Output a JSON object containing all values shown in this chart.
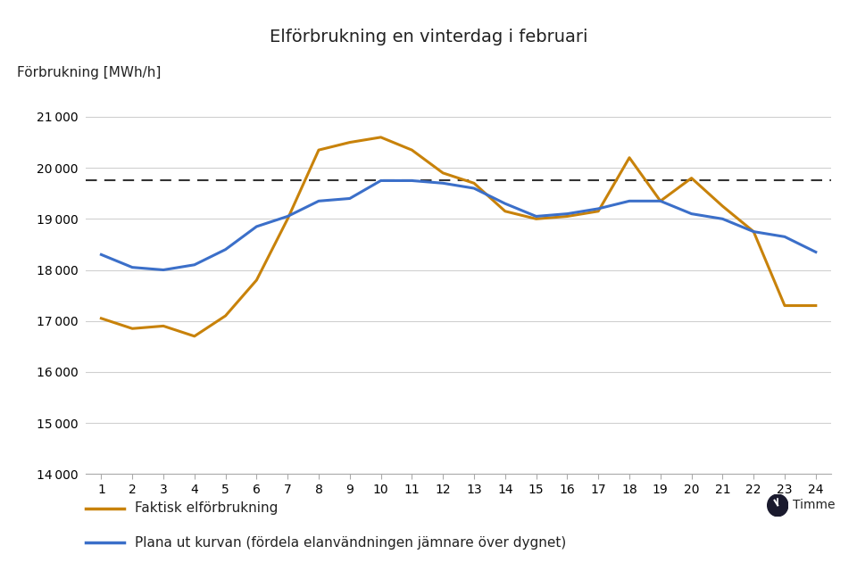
{
  "title": "Elförbrukning en vinterdag i februari",
  "ylabel": "Förbrukning [MWh/h]",
  "xlabel_icon_label": "Timme",
  "hours": [
    1,
    2,
    3,
    4,
    5,
    6,
    7,
    8,
    9,
    10,
    11,
    12,
    13,
    14,
    15,
    16,
    17,
    18,
    19,
    20,
    21,
    22,
    23,
    24
  ],
  "faktisk": [
    17050,
    16850,
    16900,
    16700,
    17100,
    17800,
    19000,
    20350,
    20500,
    20600,
    20350,
    19900,
    19700,
    19150,
    19000,
    19050,
    19150,
    20200,
    19350,
    19800,
    19250,
    18750,
    17300,
    17300
  ],
  "plana": [
    18300,
    18050,
    18000,
    18100,
    18400,
    18850,
    19050,
    19350,
    19400,
    19750,
    19750,
    19700,
    19600,
    19300,
    19050,
    19100,
    19200,
    19350,
    19350,
    19100,
    19000,
    18750,
    18650,
    18350
  ],
  "dashed_line_y": 19750,
  "ylim": [
    14000,
    21500
  ],
  "yticks": [
    14000,
    15000,
    16000,
    17000,
    18000,
    19000,
    20000,
    21000
  ],
  "ytick_labels": [
    "14 000",
    "15 000",
    "16 000",
    "17 000",
    "18 000",
    "19 000",
    "20 000",
    "21 000"
  ],
  "color_faktisk": "#C8820A",
  "color_plana": "#3B6FC9",
  "color_dashed": "#333333",
  "legend_faktisk": "Faktisk elförbrukning",
  "legend_plana": "Plana ut kurvan (fördela elanvändningen jämnare över dygnet)",
  "bg_color": "#FFFFFF",
  "grid_color": "#D0D0D0",
  "title_fontsize": 14,
  "axis_label_fontsize": 11,
  "tick_fontsize": 10,
  "legend_fontsize": 11
}
